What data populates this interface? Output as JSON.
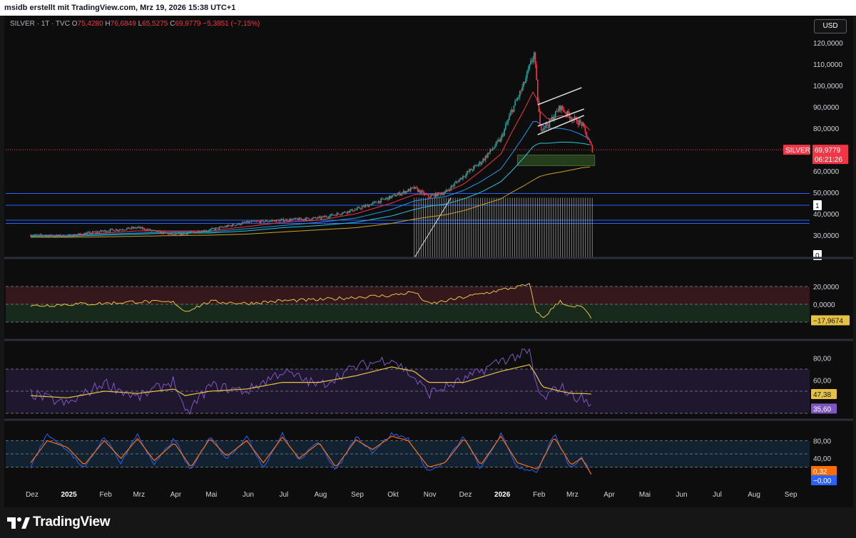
{
  "header": {
    "text": "msidb erstellt mit TradingView.com, Mrz 19, 2026 15:38 UTC+1"
  },
  "legend": {
    "symbol": "SILVER · 1T · TVC",
    "o_label": "O",
    "o_value": "75,4280",
    "h_label": "H",
    "h_value": "76,6849",
    "l_label": "L",
    "l_value": "65,5275",
    "c_label": "C",
    "c_value": "69,9779",
    "change": "−5,3851 (−7,15%)"
  },
  "currency": "USD",
  "footer": {
    "brand": "TradingView"
  },
  "colors": {
    "up": "#26a69a",
    "down": "#f23645",
    "rsi": "#7e57c2",
    "signal": "#e7c242",
    "stoch_k": "#2962ff",
    "stoch_d": "#ff6d00",
    "hline": "#2962ff",
    "ema_red": "#f23645",
    "ema_blue": "#2196f3",
    "ema_teal": "#26c6da",
    "ema_yellow": "#c9a227"
  },
  "chart_data": [
    {
      "type": "candlestick",
      "symbol": "SILVER",
      "interval": "1T",
      "source": "TVC",
      "currency": "USD",
      "y_ticks": [
        "120,0000",
        "110,0000",
        "100,0000",
        "90,0000",
        "80,0000",
        "60,0000",
        "50,0000",
        "40,0000",
        "30,0000"
      ],
      "ylim": [
        20,
        122
      ],
      "last_price": "69,9779",
      "countdown": "06:21:26",
      "symbol_badge": "SILVER",
      "x_ticks": [
        "Dez",
        "2025",
        "Feb",
        "Mrz",
        "Apr",
        "Mai",
        "Jun",
        "Jul",
        "Aug",
        "Sep",
        "Okt",
        "Nov",
        "Dez",
        "2026",
        "Feb",
        "Mrz",
        "Apr",
        "Mai",
        "Jun",
        "Jul",
        "Aug",
        "Sep"
      ],
      "x": [
        "2024-12-01",
        "2025-01-01",
        "2025-02-01",
        "2025-03-01",
        "2025-04-01",
        "2025-05-01",
        "2025-06-01",
        "2025-07-01",
        "2025-08-01",
        "2025-09-01",
        "2025-10-01",
        "2025-10-20",
        "2025-11-01",
        "2025-11-15",
        "2025-12-01",
        "2025-12-15",
        "2026-01-01",
        "2026-01-10",
        "2026-01-20",
        "2026-01-29",
        "2026-02-03",
        "2026-02-10",
        "2026-02-20",
        "2026-03-01",
        "2026-03-10",
        "2026-03-19"
      ],
      "close": [
        30,
        29.5,
        32,
        33.5,
        30,
        32.5,
        36,
        37,
        38,
        42,
        48,
        52,
        48,
        50,
        58,
        64,
        75,
        88,
        100,
        115,
        80,
        82,
        90,
        85,
        82,
        70
      ],
      "high_low_note": "",
      "moving_averages": [
        {
          "values": [
            30,
            30,
            31,
            32,
            32,
            32,
            34,
            36,
            37,
            40,
            45,
            49,
            49,
            50,
            54,
            60,
            68,
            78,
            88,
            98,
            88,
            84,
            86,
            85,
            83,
            78
          ]
        },
        {
          "values": [
            30,
            30,
            30.5,
            31,
            31.5,
            31.5,
            33,
            34.5,
            36,
            38,
            42,
            46,
            47,
            48,
            51,
            55,
            61,
            68,
            76,
            84,
            82,
            80,
            80,
            79,
            77,
            74
          ]
        },
        {
          "values": [
            29.5,
            29.5,
            30,
            30.5,
            31,
            31,
            32,
            33.5,
            34.5,
            36,
            39,
            42,
            43.5,
            44.5,
            47,
            50,
            55,
            60,
            66,
            72,
            73,
            73,
            73.5,
            73.5,
            73,
            72
          ]
        },
        {
          "values": [
            29,
            29,
            29.2,
            29.5,
            29.8,
            30,
            30.5,
            31.5,
            32.5,
            33.5,
            35.5,
            37.5,
            38.5,
            39.5,
            41.5,
            44,
            47,
            50,
            53,
            56,
            57.5,
            58.5,
            59.5,
            60.5,
            61.5,
            62
          ]
        }
      ],
      "horizontal_lines": [
        49.5,
        44,
        37,
        35.5
      ],
      "support_zone": [
        62.5,
        67.5
      ],
      "channel_upper": [
        [
          "2026-02-01",
          91
        ],
        [
          "2026-03-10",
          99
        ]
      ],
      "channel_lower": [
        [
          "2026-02-01",
          77
        ],
        [
          "2026-03-12",
          86
        ]
      ],
      "channel_mid": [
        [
          "2026-02-01",
          81
        ],
        [
          "2026-03-12",
          89
        ]
      ],
      "side_badges": [
        "1",
        "0"
      ]
    },
    {
      "type": "line",
      "panel": "oscillator",
      "y_ticks": [
        "20,0000",
        "0,0000"
      ],
      "last_value": "−17,9674",
      "bands": [
        20,
        0,
        -20
      ],
      "x": [
        "2024-12-01",
        "2025-01-01",
        "2025-02-01",
        "2025-03-01",
        "2025-04-01",
        "2025-04-10",
        "2025-05-01",
        "2025-06-01",
        "2025-07-01",
        "2025-08-01",
        "2025-09-01",
        "2025-10-01",
        "2025-10-20",
        "2025-11-01",
        "2025-12-01",
        "2026-01-01",
        "2026-01-25",
        "2026-01-30",
        "2026-02-05",
        "2026-02-20",
        "2026-03-01",
        "2026-03-10",
        "2026-03-19"
      ],
      "values": [
        -2,
        0,
        1,
        3,
        2,
        -8,
        3,
        1,
        4,
        5,
        8,
        10,
        14,
        0,
        8,
        16,
        22,
        -6,
        -16,
        4,
        -4,
        -2,
        -18
      ]
    },
    {
      "type": "line",
      "panel": "rsi",
      "y_ticks": [
        "80,00",
        "60,00"
      ],
      "last_rsi": "35,60",
      "last_signal": "47,38",
      "bands": [
        70,
        50,
        30
      ],
      "x": [
        "2024-12-01",
        "2025-01-01",
        "2025-02-01",
        "2025-03-01",
        "2025-04-01",
        "2025-04-10",
        "2025-05-01",
        "2025-06-01",
        "2025-07-01",
        "2025-08-01",
        "2025-09-01",
        "2025-10-01",
        "2025-10-20",
        "2025-11-01",
        "2025-12-01",
        "2026-01-01",
        "2026-01-25",
        "2026-01-30",
        "2026-02-05",
        "2026-02-20",
        "2026-03-01",
        "2026-03-10",
        "2026-03-19"
      ],
      "rsi": [
        48,
        38,
        58,
        44,
        60,
        28,
        55,
        50,
        68,
        55,
        72,
        80,
        62,
        48,
        60,
        78,
        85,
        58,
        42,
        55,
        46,
        44,
        35.6
      ],
      "signal": [
        46,
        44,
        50,
        48,
        52,
        46,
        50,
        52,
        58,
        58,
        64,
        72,
        68,
        58,
        58,
        68,
        74,
        66,
        54,
        50,
        48,
        48,
        47.38
      ]
    },
    {
      "type": "line",
      "panel": "stochastic",
      "y_ticks": [
        "80,00",
        "40,00"
      ],
      "last_k": "0,32",
      "last_d": "−0,00",
      "bands": [
        80,
        50,
        20
      ],
      "x": [
        "2024-12-01",
        "2024-12-15",
        "2025-01-01",
        "2025-01-15",
        "2025-02-01",
        "2025-02-15",
        "2025-03-01",
        "2025-03-15",
        "2025-04-01",
        "2025-04-15",
        "2025-05-01",
        "2025-05-15",
        "2025-06-01",
        "2025-06-15",
        "2025-07-01",
        "2025-07-15",
        "2025-08-01",
        "2025-08-15",
        "2025-09-01",
        "2025-09-15",
        "2025-10-01",
        "2025-10-15",
        "2025-11-01",
        "2025-11-15",
        "2025-12-01",
        "2025-12-15",
        "2026-01-01",
        "2026-01-15",
        "2026-02-01",
        "2026-02-15",
        "2026-03-01",
        "2026-03-10",
        "2026-03-19"
      ],
      "k": [
        20,
        95,
        60,
        15,
        90,
        30,
        95,
        25,
        85,
        10,
        92,
        40,
        88,
        20,
        95,
        35,
        80,
        10,
        90,
        55,
        95,
        85,
        10,
        30,
        90,
        15,
        95,
        20,
        10,
        95,
        15,
        45,
        0.32
      ],
      "d": [
        30,
        80,
        65,
        25,
        80,
        40,
        85,
        35,
        75,
        20,
        85,
        45,
        80,
        30,
        88,
        40,
        75,
        20,
        82,
        60,
        90,
        80,
        20,
        30,
        85,
        25,
        90,
        30,
        15,
        88,
        25,
        40,
        0
      ]
    }
  ]
}
